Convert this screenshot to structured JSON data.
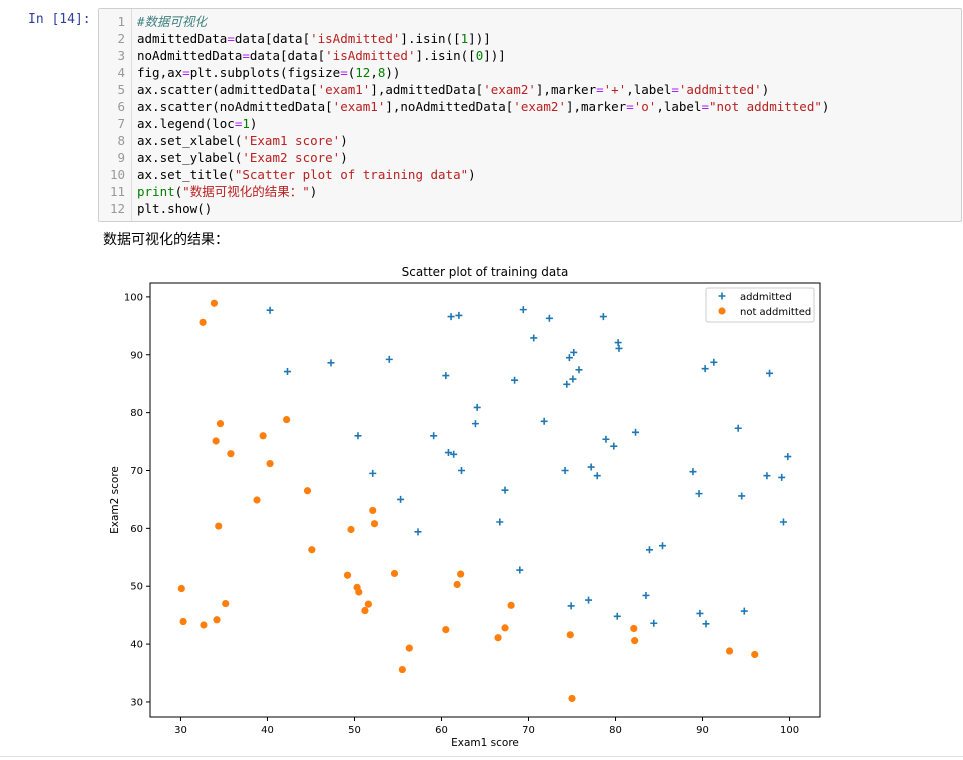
{
  "cell": {
    "prompt": "In  [14]:",
    "line_numbers": [
      "1",
      "2",
      "3",
      "4",
      "5",
      "6",
      "7",
      "8",
      "9",
      "10",
      "11",
      "12"
    ]
  },
  "output": {
    "printed_text": "数据可视化的结果："
  },
  "chart_data": {
    "type": "scatter",
    "title": "Scatter plot of training data",
    "xlabel": "Exam1 score",
    "ylabel": "Exam2 score",
    "xlim": [
      26.5,
      103.5
    ],
    "ylim": [
      27.4,
      102.4
    ],
    "xticks": [
      30,
      40,
      50,
      60,
      70,
      80,
      90,
      100
    ],
    "yticks": [
      30,
      40,
      50,
      60,
      70,
      80,
      90,
      100
    ],
    "legend_placement": "upper right",
    "grid": false,
    "series": [
      {
        "name": "addmitted",
        "marker": "+",
        "color": "#1f77b4",
        "points": [
          [
            40.3,
            97.7
          ],
          [
            42.3,
            87.1
          ],
          [
            47.3,
            88.6
          ],
          [
            50.4,
            76.0
          ],
          [
            52.1,
            69.5
          ],
          [
            54.0,
            89.2
          ],
          [
            55.3,
            65.0
          ],
          [
            57.3,
            59.4
          ],
          [
            59.1,
            76.0
          ],
          [
            60.5,
            86.4
          ],
          [
            60.8,
            73.1
          ],
          [
            61.1,
            96.6
          ],
          [
            61.4,
            72.8
          ],
          [
            62.0,
            96.8
          ],
          [
            62.3,
            70.0
          ],
          [
            63.9,
            78.1
          ],
          [
            64.1,
            80.9
          ],
          [
            66.7,
            61.1
          ],
          [
            67.3,
            66.6
          ],
          [
            68.4,
            85.6
          ],
          [
            69.0,
            52.8
          ],
          [
            69.4,
            97.8
          ],
          [
            70.6,
            92.9
          ],
          [
            71.8,
            78.5
          ],
          [
            72.4,
            96.3
          ],
          [
            74.2,
            70.0
          ],
          [
            74.4,
            84.9
          ],
          [
            74.7,
            89.5
          ],
          [
            74.9,
            46.6
          ],
          [
            75.1,
            85.8
          ],
          [
            75.2,
            90.4
          ],
          [
            75.8,
            87.4
          ],
          [
            76.9,
            47.6
          ],
          [
            77.2,
            70.6
          ],
          [
            77.9,
            69.1
          ],
          [
            78.6,
            96.6
          ],
          [
            78.9,
            75.4
          ],
          [
            79.8,
            74.2
          ],
          [
            80.2,
            44.8
          ],
          [
            80.3,
            92.1
          ],
          [
            80.4,
            91.1
          ],
          [
            82.3,
            76.6
          ],
          [
            83.5,
            48.4
          ],
          [
            83.9,
            56.3
          ],
          [
            84.4,
            43.6
          ],
          [
            85.4,
            57.0
          ],
          [
            88.9,
            69.8
          ],
          [
            89.6,
            66.0
          ],
          [
            89.7,
            45.3
          ],
          [
            90.3,
            87.6
          ],
          [
            90.4,
            43.5
          ],
          [
            91.3,
            88.7
          ],
          [
            94.1,
            77.3
          ],
          [
            94.5,
            65.6
          ],
          [
            94.8,
            45.7
          ],
          [
            97.4,
            69.1
          ],
          [
            97.7,
            86.8
          ],
          [
            99.1,
            68.8
          ],
          [
            99.3,
            61.1
          ],
          [
            99.8,
            72.4
          ]
        ]
      },
      {
        "name": "not addmitted",
        "marker": "o",
        "color": "#ff7f0e",
        "points": [
          [
            30.1,
            49.6
          ],
          [
            30.3,
            43.9
          ],
          [
            32.6,
            95.6
          ],
          [
            32.7,
            43.3
          ],
          [
            33.9,
            98.9
          ],
          [
            34.1,
            75.1
          ],
          [
            34.2,
            44.2
          ],
          [
            34.4,
            60.4
          ],
          [
            34.6,
            78.1
          ],
          [
            35.2,
            47.0
          ],
          [
            35.8,
            72.9
          ],
          [
            38.8,
            64.9
          ],
          [
            39.5,
            76.0
          ],
          [
            40.3,
            71.2
          ],
          [
            42.2,
            78.8
          ],
          [
            44.6,
            66.5
          ],
          [
            45.1,
            56.3
          ],
          [
            49.2,
            51.9
          ],
          [
            49.6,
            59.8
          ],
          [
            50.3,
            49.8
          ],
          [
            50.5,
            49.0
          ],
          [
            51.2,
            45.8
          ],
          [
            51.6,
            46.9
          ],
          [
            52.1,
            63.1
          ],
          [
            52.3,
            60.8
          ],
          [
            54.6,
            52.2
          ],
          [
            55.5,
            35.6
          ],
          [
            56.3,
            39.3
          ],
          [
            60.5,
            42.5
          ],
          [
            61.8,
            50.3
          ],
          [
            62.2,
            52.1
          ],
          [
            66.5,
            41.1
          ],
          [
            67.3,
            42.8
          ],
          [
            68.0,
            46.7
          ],
          [
            74.8,
            41.6
          ],
          [
            75.0,
            30.6
          ],
          [
            82.1,
            42.7
          ],
          [
            82.2,
            40.6
          ],
          [
            93.1,
            38.8
          ],
          [
            96.0,
            38.2
          ]
        ]
      }
    ]
  }
}
